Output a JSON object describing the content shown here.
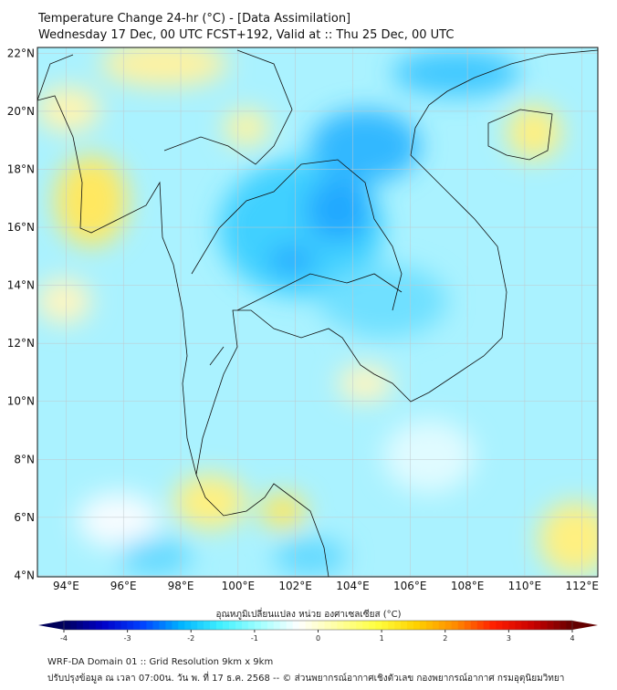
{
  "title": {
    "line1": "Temperature Change 24-hr (°C) - [Data Assimilation]",
    "line2": "Wednesday 17 Dec, 00 UTC FCST+192, Valid at :: Thu 25 Dec, 00 UTC"
  },
  "map": {
    "lat_labels": [
      "4°N",
      "6°N",
      "8°N",
      "10°N",
      "12°N",
      "14°N",
      "16°N",
      "18°N",
      "20°N",
      "22°N"
    ],
    "lon_labels": [
      "94°E",
      "96°E",
      "98°E",
      "100°E",
      "102°E",
      "104°E",
      "106°E",
      "108°E",
      "110°E",
      "112°E"
    ],
    "extent": {
      "lon": [
        93.0,
        112.55
      ],
      "lat": [
        3.95,
        22.2
      ]
    }
  },
  "colorbar": {
    "title": "อุณหภูมิเปลี่ยนแปลง หน่วย องศาเซลเซียส (°C)",
    "ticks": [
      "-4",
      "-3",
      "-2",
      "-1",
      "0",
      "1",
      "2",
      "3",
      "4"
    ],
    "range": [
      -4,
      4
    ],
    "colors": [
      "#00005a",
      "#0000c8",
      "#0040ff",
      "#00b4ff",
      "#40f0ff",
      "#a0ffff",
      "#ffffff",
      "#ffffa0",
      "#ffff40",
      "#ffd200",
      "#ff8c00",
      "#ff1e00",
      "#c80000",
      "#640000"
    ]
  },
  "footer": {
    "line1": "WRF-DA Domain 01 :: Grid Resolution 9km x 9km",
    "line2": "ปรับปรุงข้อมูล ณ เวลา 07:00น. วัน พ. ที่ 17 ธ.ค. 2568 -- © ส่วนพยากรณ์อากาศเชิงตัวเลข กองพยากรณ์อากาศ กรมอุตุนิยมวิทยา"
  }
}
